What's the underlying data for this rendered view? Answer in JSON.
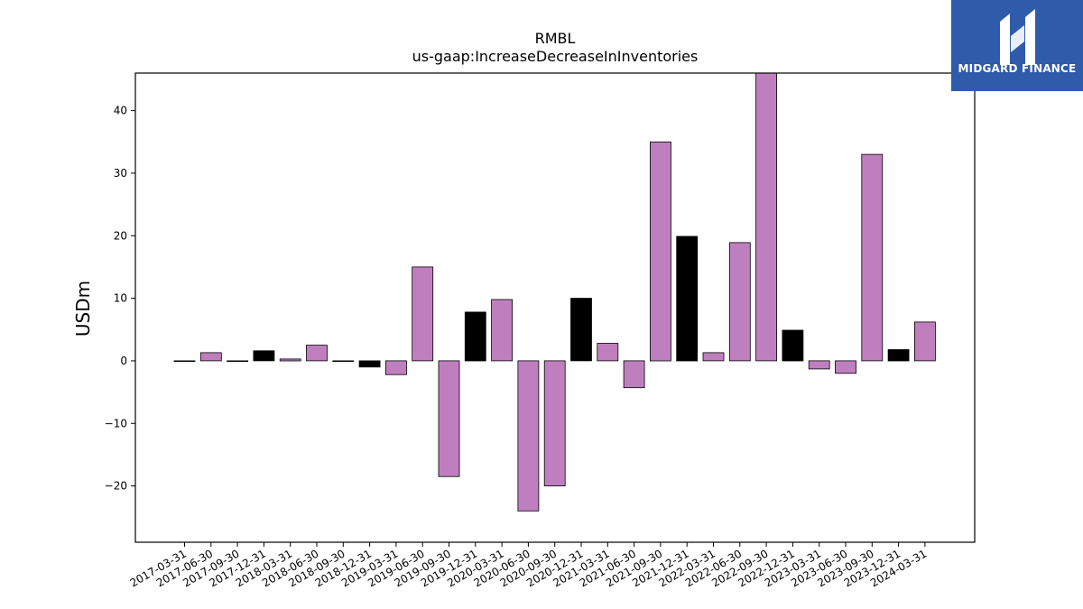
{
  "logo": {
    "text": "MIDGARD FINANCE",
    "icon": "midgard-mark-icon",
    "background": "#2f5bab"
  },
  "chart_data": {
    "type": "bar",
    "title": "RMBL",
    "subtitle": "us-gaap:IncreaseDecreaseInInventories",
    "xlabel": "",
    "ylabel": "USDm",
    "ylim": [
      -29,
      46
    ],
    "yticks": [
      -20,
      -10,
      0,
      10,
      20,
      30,
      40
    ],
    "grid": false,
    "categories": [
      "2017-03-31",
      "2017-06-30",
      "2017-09-30",
      "2017-12-31",
      "2018-03-31",
      "2018-06-30",
      "2018-09-30",
      "2018-12-31",
      "2019-03-31",
      "2019-06-30",
      "2019-09-30",
      "2019-12-31",
      "2020-03-31",
      "2020-06-30",
      "2020-09-30",
      "2020-12-31",
      "2021-03-31",
      "2021-06-30",
      "2021-09-30",
      "2021-12-31",
      "2022-03-31",
      "2022-06-30",
      "2022-09-30",
      "2022-12-31",
      "2023-03-31",
      "2023-06-30",
      "2023-09-30",
      "2023-12-31",
      "2024-03-31"
    ],
    "values": [
      0.0,
      1.3,
      0.0,
      1.6,
      0.3,
      2.5,
      0.0,
      -1.0,
      -2.2,
      15.0,
      -18.5,
      7.8,
      9.8,
      -24.0,
      -20.0,
      10.0,
      2.8,
      -4.3,
      35.0,
      19.9,
      1.3,
      18.9,
      47.0,
      4.9,
      -1.3,
      -2.0,
      33.0,
      1.8,
      6.2
    ],
    "colors": [
      "#000000",
      "#bf7fbf",
      "#000000",
      "#000000",
      "#bf7fbf",
      "#bf7fbf",
      "#000000",
      "#000000",
      "#bf7fbf",
      "#bf7fbf",
      "#bf7fbf",
      "#000000",
      "#bf7fbf",
      "#bf7fbf",
      "#bf7fbf",
      "#000000",
      "#bf7fbf",
      "#bf7fbf",
      "#bf7fbf",
      "#000000",
      "#bf7fbf",
      "#bf7fbf",
      "#bf7fbf",
      "#000000",
      "#bf7fbf",
      "#bf7fbf",
      "#bf7fbf",
      "#000000",
      "#bf7fbf"
    ]
  }
}
